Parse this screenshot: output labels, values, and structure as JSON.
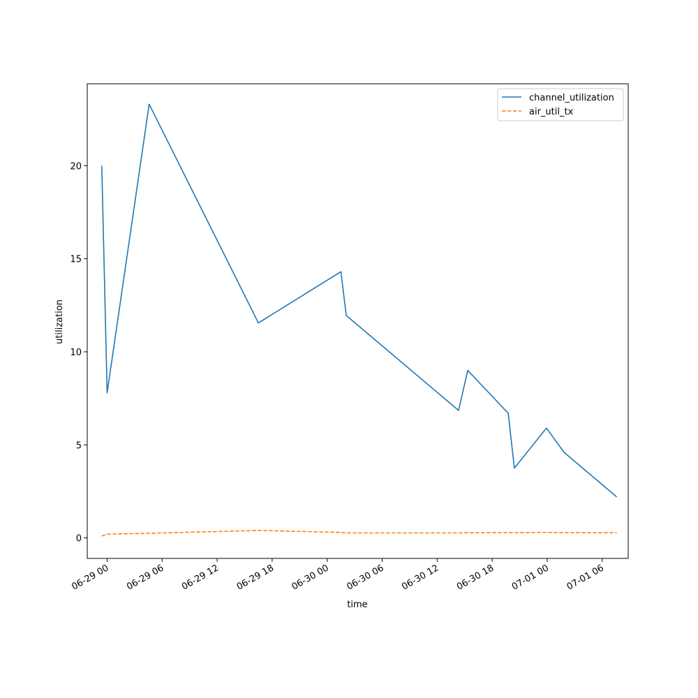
{
  "chart_data": {
    "type": "line",
    "title": "",
    "xlabel": "time",
    "ylabel": "utilization",
    "x_axis_type": "datetime",
    "xlim": [
      "2024-06-28T21:50",
      "2024-07-01T08:50"
    ],
    "ylim": [
      -1.1,
      24.4
    ],
    "grid": false,
    "legend_position": "top-right",
    "x_ticks": [
      {
        "value": "2024-06-29T00:00",
        "label": "06-29 00"
      },
      {
        "value": "2024-06-29T06:00",
        "label": "06-29 06"
      },
      {
        "value": "2024-06-29T12:00",
        "label": "06-29 12"
      },
      {
        "value": "2024-06-29T18:00",
        "label": "06-29 18"
      },
      {
        "value": "2024-06-30T00:00",
        "label": "06-30 00"
      },
      {
        "value": "2024-06-30T06:00",
        "label": "06-30 06"
      },
      {
        "value": "2024-06-30T12:00",
        "label": "06-30 12"
      },
      {
        "value": "2024-06-30T18:00",
        "label": "06-30 18"
      },
      {
        "value": "2024-07-01T00:00",
        "label": "07-01 00"
      },
      {
        "value": "2024-07-01T06:00",
        "label": "07-01 06"
      }
    ],
    "y_ticks": [
      {
        "value": 0,
        "label": "0"
      },
      {
        "value": 5,
        "label": "5"
      },
      {
        "value": 10,
        "label": "10"
      },
      {
        "value": 15,
        "label": "15"
      },
      {
        "value": 20,
        "label": "20"
      }
    ],
    "series": [
      {
        "name": "channel_utilization",
        "color": "#1f77b4",
        "style": "solid",
        "points": [
          {
            "x": "2024-06-28T23:25",
            "y": 20.0
          },
          {
            "x": "2024-06-29T00:00",
            "y": 7.8
          },
          {
            "x": "2024-06-29T04:35",
            "y": 23.3
          },
          {
            "x": "2024-06-29T16:30",
            "y": 11.55
          },
          {
            "x": "2024-06-30T01:30",
            "y": 14.3
          },
          {
            "x": "2024-06-30T02:05",
            "y": 11.95
          },
          {
            "x": "2024-06-30T14:20",
            "y": 6.85
          },
          {
            "x": "2024-06-30T15:20",
            "y": 9.0
          },
          {
            "x": "2024-06-30T19:45",
            "y": 6.7
          },
          {
            "x": "2024-06-30T20:25",
            "y": 3.75
          },
          {
            "x": "2024-06-30T23:55",
            "y": 5.9
          },
          {
            "x": "2024-07-01T01:50",
            "y": 4.6
          },
          {
            "x": "2024-07-01T07:35",
            "y": 2.2
          }
        ]
      },
      {
        "name": "air_util_tx",
        "color": "#ff7f0e",
        "style": "dashed",
        "points": [
          {
            "x": "2024-06-28T23:25",
            "y": 0.1
          },
          {
            "x": "2024-06-29T00:00",
            "y": 0.2
          },
          {
            "x": "2024-06-29T04:35",
            "y": 0.25
          },
          {
            "x": "2024-06-29T16:30",
            "y": 0.4
          },
          {
            "x": "2024-06-30T01:30",
            "y": 0.3
          },
          {
            "x": "2024-06-30T02:05",
            "y": 0.27
          },
          {
            "x": "2024-06-30T14:20",
            "y": 0.27
          },
          {
            "x": "2024-06-30T15:20",
            "y": 0.28
          },
          {
            "x": "2024-06-30T19:45",
            "y": 0.28
          },
          {
            "x": "2024-06-30T20:25",
            "y": 0.28
          },
          {
            "x": "2024-06-30T23:55",
            "y": 0.3
          },
          {
            "x": "2024-07-01T01:50",
            "y": 0.28
          },
          {
            "x": "2024-07-01T07:35",
            "y": 0.28
          }
        ]
      }
    ]
  }
}
